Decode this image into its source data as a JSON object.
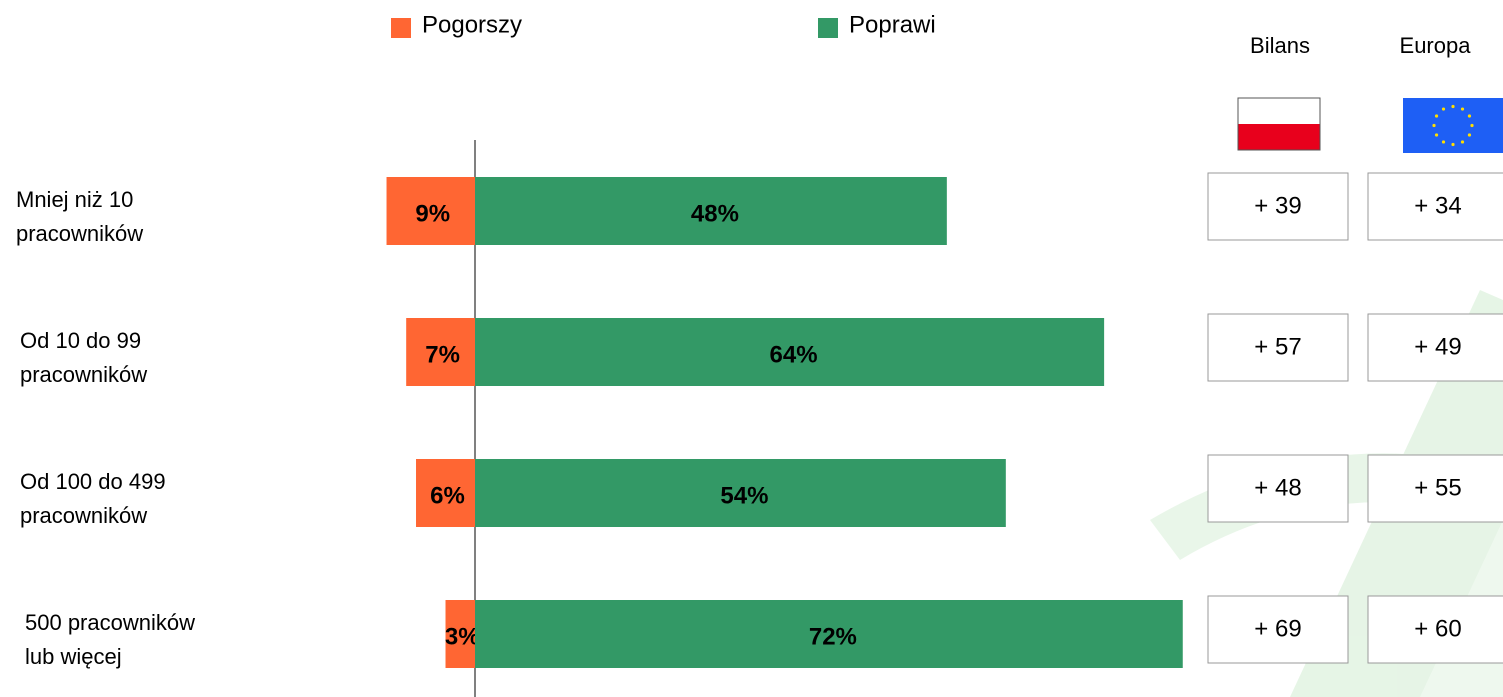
{
  "chart_data": {
    "type": "diverging-bar",
    "categories": [
      [
        "Mniej niż 10",
        "pracowników"
      ],
      [
        "Od 10 do 99",
        "pracowników"
      ],
      [
        "Od 100 do 499",
        "pracowników"
      ],
      [
        "500 pracowników",
        "lub więcej"
      ]
    ],
    "series": [
      {
        "name": "Pogorszy",
        "color": "#ff6633",
        "direction": "left",
        "values": [
          9,
          7,
          6,
          3
        ],
        "value_labels": [
          "9%",
          "7%",
          "6%",
          "3%"
        ]
      },
      {
        "name": "Poprawi",
        "color": "#339966",
        "direction": "right",
        "values": [
          48,
          64,
          54,
          72
        ],
        "value_labels": [
          "48%",
          "64%",
          "54%",
          "72%"
        ]
      }
    ],
    "columns": [
      {
        "name": "Bilans",
        "cells": [
          "+ 39",
          "+ 57",
          "+ 48",
          "+ 69"
        ]
      },
      {
        "name": "Europa",
        "cells": [
          "+ 34",
          "+ 49",
          "+ 55",
          "+ 60"
        ]
      }
    ]
  }
}
